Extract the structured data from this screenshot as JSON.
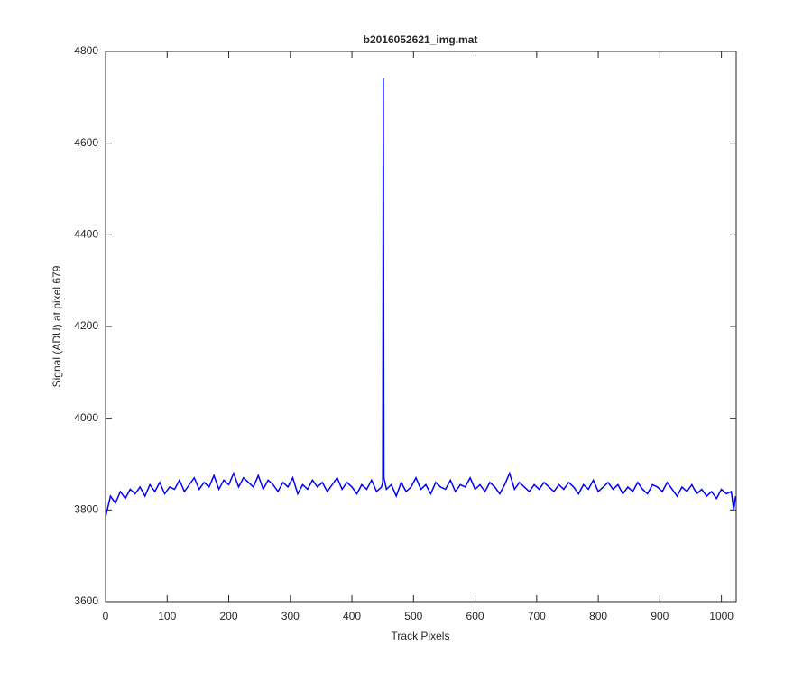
{
  "chart_data": {
    "type": "line",
    "title": "b2016052621_img.mat",
    "xlabel": "Track Pixels",
    "ylabel": "Signal (ADU) at pixel 679",
    "x": [
      0,
      8,
      16,
      24,
      32,
      40,
      48,
      56,
      64,
      72,
      80,
      88,
      96,
      104,
      112,
      120,
      128,
      136,
      144,
      152,
      160,
      168,
      176,
      184,
      192,
      200,
      208,
      216,
      224,
      232,
      240,
      248,
      256,
      264,
      272,
      280,
      288,
      296,
      304,
      312,
      320,
      328,
      336,
      344,
      352,
      360,
      368,
      376,
      384,
      392,
      400,
      408,
      416,
      424,
      432,
      440,
      448,
      450,
      451,
      452,
      456,
      464,
      472,
      480,
      488,
      496,
      504,
      512,
      520,
      528,
      536,
      544,
      552,
      560,
      568,
      576,
      584,
      592,
      600,
      608,
      616,
      624,
      632,
      640,
      648,
      656,
      664,
      672,
      680,
      688,
      696,
      704,
      712,
      720,
      728,
      736,
      744,
      752,
      760,
      768,
      776,
      784,
      792,
      800,
      808,
      816,
      824,
      832,
      840,
      848,
      856,
      864,
      872,
      880,
      888,
      896,
      904,
      912,
      920,
      928,
      936,
      944,
      952,
      960,
      968,
      976,
      984,
      992,
      1000,
      1008,
      1016,
      1020,
      1023
    ],
    "series": [
      {
        "name": "signal",
        "color": "#0000ff",
        "values": [
          3785,
          3830,
          3815,
          3840,
          3825,
          3845,
          3835,
          3850,
          3830,
          3855,
          3840,
          3860,
          3835,
          3850,
          3845,
          3865,
          3840,
          3855,
          3870,
          3845,
          3860,
          3850,
          3875,
          3845,
          3865,
          3855,
          3880,
          3850,
          3870,
          3860,
          3850,
          3875,
          3845,
          3865,
          3855,
          3840,
          3860,
          3850,
          3870,
          3835,
          3855,
          3845,
          3865,
          3850,
          3860,
          3840,
          3855,
          3870,
          3845,
          3860,
          3850,
          3835,
          3855,
          3845,
          3865,
          3840,
          3850,
          3860,
          4742,
          3870,
          3845,
          3855,
          3830,
          3860,
          3840,
          3850,
          3870,
          3845,
          3855,
          3835,
          3860,
          3850,
          3845,
          3865,
          3840,
          3855,
          3850,
          3870,
          3845,
          3855,
          3840,
          3860,
          3850,
          3835,
          3855,
          3880,
          3845,
          3860,
          3850,
          3840,
          3855,
          3845,
          3860,
          3850,
          3840,
          3855,
          3845,
          3860,
          3850,
          3835,
          3855,
          3845,
          3865,
          3840,
          3850,
          3860,
          3845,
          3855,
          3835,
          3850,
          3840,
          3860,
          3845,
          3835,
          3855,
          3850,
          3840,
          3860,
          3845,
          3830,
          3850,
          3840,
          3855,
          3835,
          3845,
          3830,
          3840,
          3825,
          3845,
          3835,
          3840,
          3800,
          3830
        ]
      }
    ],
    "xlim": [
      0,
      1024
    ],
    "xticks": [
      0,
      100,
      200,
      300,
      400,
      500,
      600,
      700,
      800,
      900,
      1000
    ],
    "ylim": [
      3600,
      4800
    ],
    "yticks": [
      3600,
      3800,
      4000,
      4200,
      4400,
      4600,
      4800
    ]
  }
}
